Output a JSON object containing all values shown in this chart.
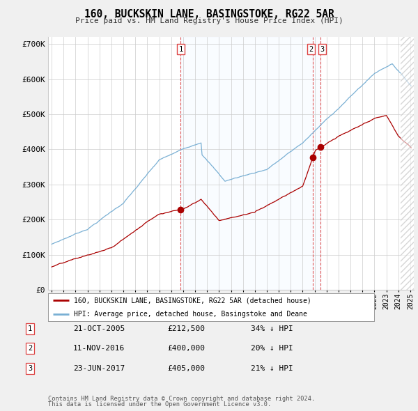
{
  "title": "160, BUCKSKIN LANE, BASINGSTOKE, RG22 5AR",
  "subtitle": "Price paid vs. HM Land Registry's House Price Index (HPI)",
  "hpi_label": "HPI: Average price, detached house, Basingstoke and Deane",
  "price_label": "160, BUCKSKIN LANE, BASINGSTOKE, RG22 5AR (detached house)",
  "footer1": "Contains HM Land Registry data © Crown copyright and database right 2024.",
  "footer2": "This data is licensed under the Open Government Licence v3.0.",
  "transactions": [
    {
      "num": "1",
      "date": "21-OCT-2005",
      "price": "£212,500",
      "hpi": "34% ↓ HPI",
      "year": 2005.8
    },
    {
      "num": "2",
      "date": "11-NOV-2016",
      "price": "£400,000",
      "hpi": "20% ↓ HPI",
      "year": 2016.86
    },
    {
      "num": "3",
      "date": "23-JUN-2017",
      "price": "£405,000",
      "hpi": "21% ↓ HPI",
      "year": 2017.47
    }
  ],
  "hpi_color": "#7ab0d4",
  "price_color": "#aa0000",
  "vline_color": "#dd4444",
  "grid_color": "#cccccc",
  "bg_color": "#f0f0f0",
  "plot_bg_color": "#ffffff",
  "shade_color": "#ddeeff",
  "ylim": [
    0,
    720000
  ],
  "yticks": [
    0,
    100000,
    200000,
    300000,
    400000,
    500000,
    600000,
    700000
  ],
  "ytick_labels": [
    "£0",
    "£100K",
    "£200K",
    "£300K",
    "£400K",
    "£500K",
    "£600K",
    "£700K"
  ],
  "xlim": [
    1994.7,
    2025.3
  ]
}
